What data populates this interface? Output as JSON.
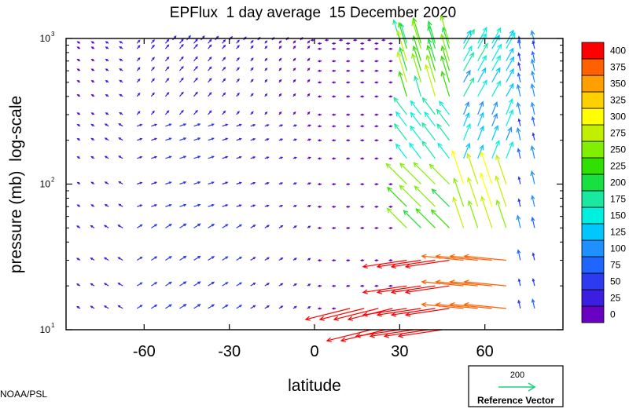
{
  "chart_data": {
    "type": "vector-field",
    "title": "EPFlux  1 day average  15 December 2020",
    "xlabel": "latitude",
    "ylabel": "pressure (mb)  log-scale",
    "xlim": [
      -87.5,
      87.5
    ],
    "ylim": [
      1000,
      10
    ],
    "y_scale": "log",
    "x_ticks": [
      -60,
      -30,
      0,
      30,
      60
    ],
    "x_tick_labels": [
      "-60",
      "-30",
      "0",
      "30",
      "60"
    ],
    "y_ticks": [
      10,
      100,
      1000
    ],
    "y_tick_labels": [
      {
        "base": "10",
        "exp": "1"
      },
      {
        "base": "10",
        "exp": "2"
      },
      {
        "base": "10",
        "exp": "3"
      }
    ],
    "colorbar": {
      "levels": [
        0,
        25,
        50,
        75,
        100,
        125,
        150,
        175,
        200,
        225,
        250,
        275,
        300,
        325,
        350,
        375,
        400
      ],
      "labels": [
        "0",
        "25",
        "50",
        "75",
        "100",
        "125",
        "150",
        "175",
        "200",
        "225",
        "250",
        "275",
        "300",
        "325",
        "350",
        "375",
        "400"
      ],
      "colors": [
        "#6a00c0",
        "#3b1ee0",
        "#2c3bf0",
        "#1f66ff",
        "#1e90ff",
        "#00c8ff",
        "#00f0e0",
        "#18e8a0",
        "#18e040",
        "#30e000",
        "#80f000",
        "#c0f000",
        "#ffff00",
        "#ffd000",
        "#ffa000",
        "#ff6000",
        "#ff0000"
      ]
    },
    "reference_vector": {
      "magnitude": "200",
      "label": "Reference Vector",
      "color": "#1fd07a"
    },
    "pressure_levels": [
      1000,
      925,
      850,
      700,
      600,
      500,
      400,
      300,
      250,
      200,
      150,
      100,
      70,
      50,
      30,
      20,
      10
    ],
    "arrow_rows": [
      {
        "pressure": 975,
        "lat_min": -50,
        "lat_max": 30
      },
      {
        "pressure": 925,
        "lat_min": -82.5,
        "lat_max": 77.5
      },
      {
        "pressure": 850,
        "lat_min": -82.5,
        "lat_max": 77.5
      },
      {
        "pressure": 700,
        "lat_min": -82.5,
        "lat_max": 77.5
      },
      {
        "pressure": 600,
        "lat_min": -82.5,
        "lat_max": 77.5
      },
      {
        "pressure": 500,
        "lat_min": -82.5,
        "lat_max": 77.5
      },
      {
        "pressure": 400,
        "lat_min": -82.5,
        "lat_max": 77.5
      },
      {
        "pressure": 300,
        "lat_min": -82.5,
        "lat_max": 77.5
      },
      {
        "pressure": 250,
        "lat_min": -82.5,
        "lat_max": 77.5
      },
      {
        "pressure": 200,
        "lat_min": -82.5,
        "lat_max": 77.5
      },
      {
        "pressure": 150,
        "lat_min": -82.5,
        "lat_max": 77.5
      },
      {
        "pressure": 100,
        "lat_min": -82.5,
        "lat_max": 77.5
      },
      {
        "pressure": 70,
        "lat_min": -82.5,
        "lat_max": 77.5
      },
      {
        "pressure": 50,
        "lat_min": -82.5,
        "lat_max": 77.5
      },
      {
        "pressure": 30,
        "lat_min": -82.5,
        "lat_max": 77.5
      },
      {
        "pressure": 20,
        "lat_min": -82.5,
        "lat_max": 77.5
      },
      {
        "pressure": 14,
        "lat_min": -82.5,
        "lat_max": 77.5
      },
      {
        "pressure": 10,
        "lat_min": 20,
        "lat_max": 47.5
      }
    ],
    "arrow_lat_step": 5
  },
  "credit": "NOAA/PSL"
}
